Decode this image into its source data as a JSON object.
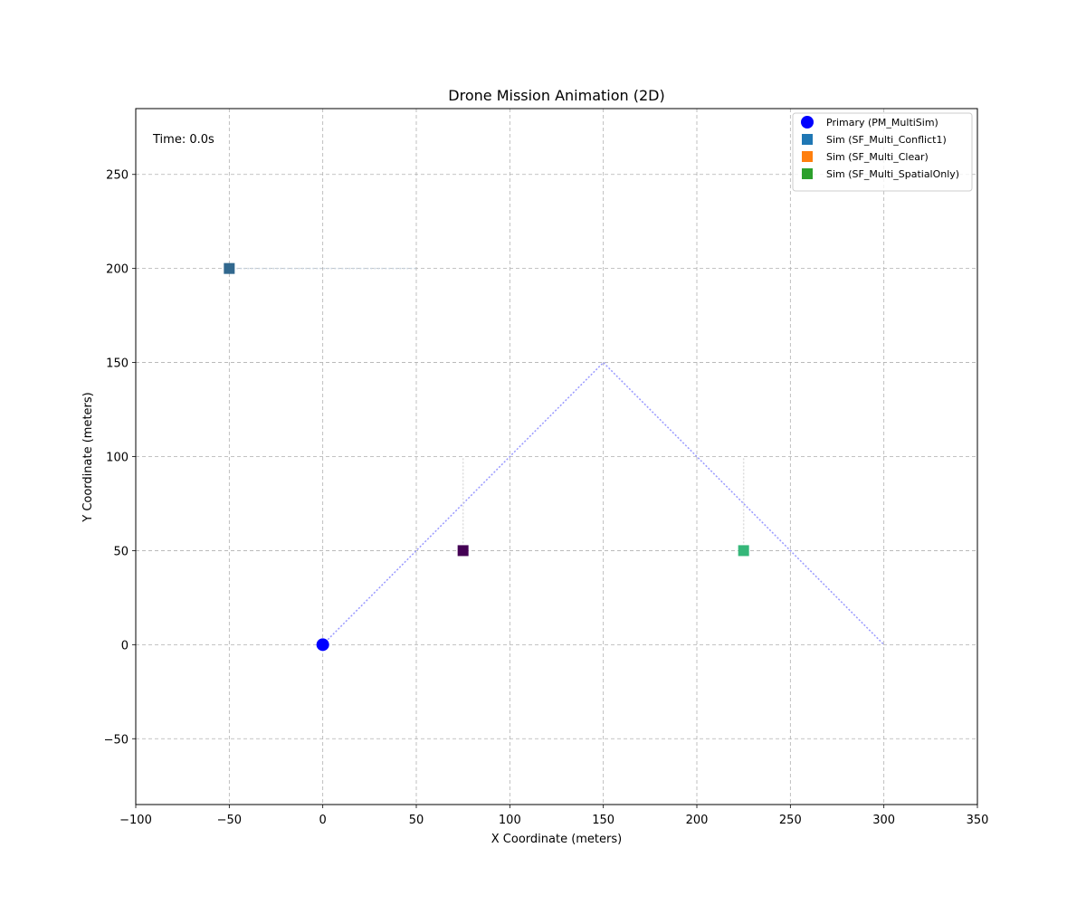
{
  "chart_data": {
    "type": "scatter",
    "title": "Drone Mission Animation (2D)",
    "xlabel": "X Coordinate (meters)",
    "ylabel": "Y Coordinate (meters)",
    "xlim": [
      -100,
      350
    ],
    "ylim": [
      -85,
      285
    ],
    "xticks": [
      -100,
      -50,
      0,
      50,
      100,
      150,
      200,
      250,
      300,
      350
    ],
    "yticks": [
      -50,
      0,
      50,
      100,
      150,
      200,
      250
    ],
    "grid": true,
    "legend_position": "upper-right",
    "annotation": "Time: 0.0s",
    "legend": [
      {
        "label": "Primary (PM_MultiSim)",
        "color": "#0000ff",
        "marker": "circle"
      },
      {
        "label": "Sim (SF_Multi_Conflict1)",
        "color": "#1f77b4",
        "marker": "square"
      },
      {
        "label": "Sim (SF_Multi_Clear)",
        "color": "#ff7f0e",
        "marker": "square"
      },
      {
        "label": "Sim (SF_Multi_SpatialOnly)",
        "color": "#2ca02c",
        "marker": "square"
      }
    ],
    "paths": [
      {
        "name": "Primary (PM_MultiSim)",
        "color": "#9999ff",
        "points": [
          [
            0,
            0
          ],
          [
            150,
            150
          ],
          [
            300,
            0
          ]
        ]
      },
      {
        "name": "Sim (SF_Multi_Conflict1)",
        "color": "#c8d4e0",
        "points": [
          [
            -50,
            200
          ],
          [
            50,
            200
          ]
        ]
      },
      {
        "name": "Sim (SF_Multi_Clear)",
        "color": "#dcdcdc",
        "points": [
          [
            75,
            50
          ],
          [
            75,
            100
          ]
        ]
      },
      {
        "name": "Sim (SF_Multi_SpatialOnly)",
        "color": "#dcdcdc",
        "points": [
          [
            225,
            50
          ],
          [
            225,
            100
          ]
        ]
      }
    ],
    "drones": [
      {
        "name": "Primary (PM_MultiSim)",
        "x": 0,
        "y": 0,
        "marker": "circle",
        "color": "#0000ff"
      },
      {
        "name": "Sim (SF_Multi_Conflict1)",
        "x": -50,
        "y": 200,
        "marker": "square",
        "color": "#31688e"
      },
      {
        "name": "Sim (SF_Multi_Clear)",
        "x": 75,
        "y": 50,
        "marker": "square",
        "color": "#440154"
      },
      {
        "name": "Sim (SF_Multi_SpatialOnly)",
        "x": 225,
        "y": 50,
        "marker": "square",
        "color": "#35b779"
      }
    ]
  }
}
